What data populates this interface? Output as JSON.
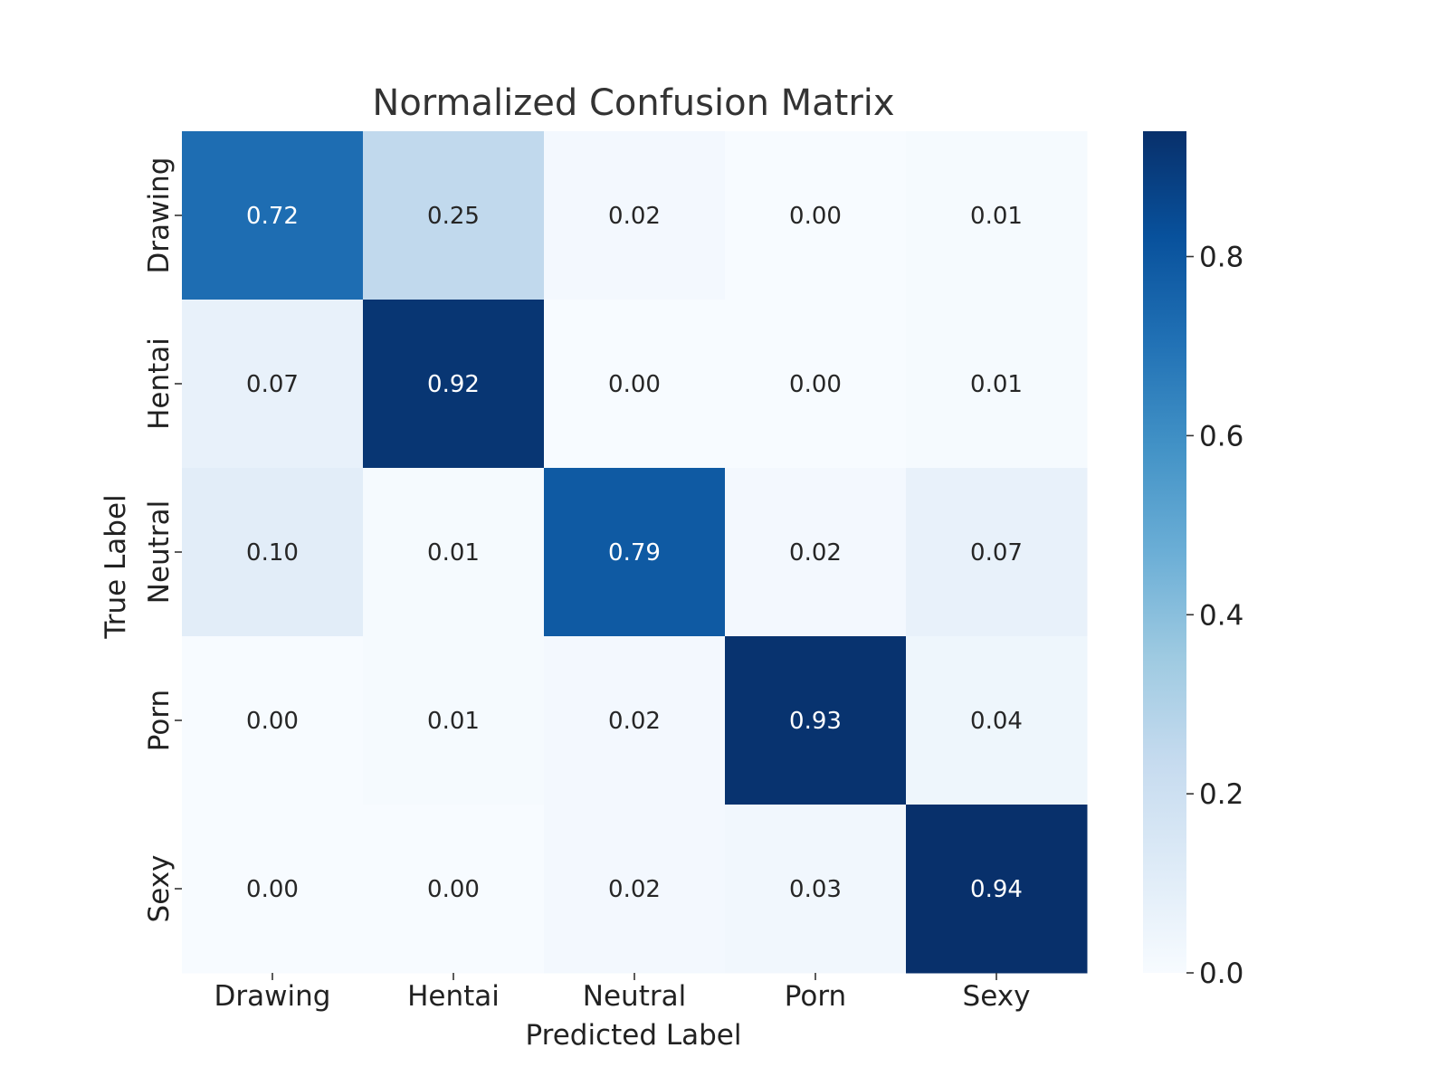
{
  "chart_data": {
    "type": "heatmap",
    "title": "Normalized Confusion Matrix",
    "xlabel": "Predicted Label",
    "ylabel": "True Label",
    "x_categories": [
      "Drawing",
      "Hentai",
      "Neutral",
      "Porn",
      "Sexy"
    ],
    "y_categories": [
      "Drawing",
      "Hentai",
      "Neutral",
      "Porn",
      "Sexy"
    ],
    "values": [
      [
        0.72,
        0.25,
        0.02,
        0.0,
        0.01
      ],
      [
        0.07,
        0.92,
        0.0,
        0.0,
        0.01
      ],
      [
        0.1,
        0.01,
        0.79,
        0.02,
        0.07
      ],
      [
        0.0,
        0.01,
        0.02,
        0.93,
        0.04
      ],
      [
        0.0,
        0.0,
        0.02,
        0.03,
        0.94
      ]
    ],
    "value_format": "0.00",
    "colormap": "Blues",
    "color_range": [
      0.0,
      0.94
    ],
    "colorbar_ticks": [
      0.0,
      0.2,
      0.4,
      0.6,
      0.8
    ],
    "colorbar_tick_labels": [
      "0.0",
      "0.2",
      "0.4",
      "0.6",
      "0.8"
    ],
    "colorbar_position": "right",
    "grid": false
  }
}
